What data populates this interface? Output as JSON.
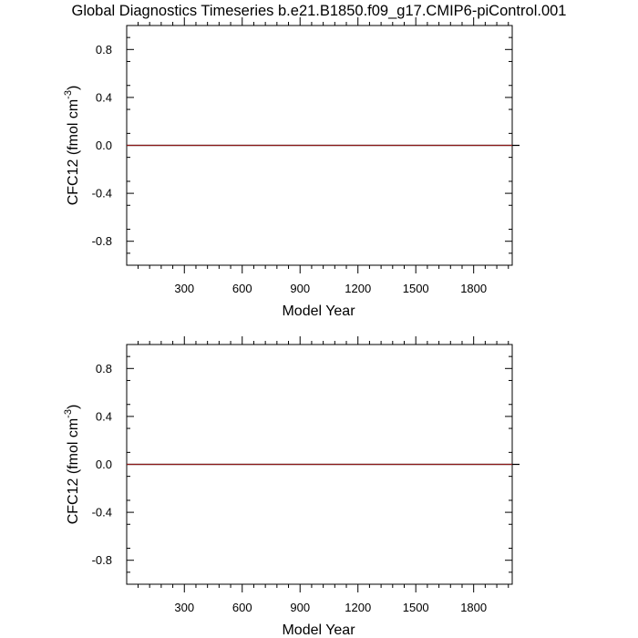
{
  "figure_title": "Global Diagnostics Timeseries b.e21.B1850.f09_g17.CMIP6-piControl.001",
  "colors": {
    "series": "#8b1a1a",
    "axes": "#000000"
  },
  "chart_data": [
    {
      "type": "line",
      "xlabel": "Model Year",
      "ylabel_main": "CFC12 (fmol cm",
      "ylabel_sup": "-3",
      "ylabel_close": ")",
      "xlim": [
        1,
        2000
      ],
      "ylim": [
        -1,
        1
      ],
      "x_ticks": [
        300,
        600,
        900,
        1200,
        1500,
        1800
      ],
      "x_tick_labels": [
        "300",
        "600",
        "900",
        "1200",
        "1500",
        "1800"
      ],
      "y_ticks": [
        0.8,
        0.4,
        0.0,
        -0.4,
        -0.8
      ],
      "y_tick_labels": [
        "0.8",
        "0.4",
        "0.0",
        "-0.4",
        "-0.8"
      ],
      "grid": false,
      "series": [
        {
          "x": [
            1,
            400,
            800,
            1200,
            1400,
            1600,
            1850,
            2000
          ],
          "y": [
            0.0,
            0.0,
            0.0,
            0.0,
            0.0,
            0.0,
            0.0,
            0.0
          ]
        }
      ]
    },
    {
      "type": "line",
      "xlabel": "Model Year",
      "ylabel_main": "CFC12 (fmol cm",
      "ylabel_sup": "-3",
      "ylabel_close": ")",
      "xlim": [
        1,
        2000
      ],
      "ylim": [
        -1,
        1
      ],
      "x_ticks": [
        300,
        600,
        900,
        1200,
        1500,
        1800
      ],
      "x_tick_labels": [
        "300",
        "600",
        "900",
        "1200",
        "1500",
        "1800"
      ],
      "y_ticks": [
        0.8,
        0.4,
        0.0,
        -0.4,
        -0.8
      ],
      "y_tick_labels": [
        "0.8",
        "0.4",
        "0.0",
        "-0.4",
        "-0.8"
      ],
      "grid": false,
      "series": [
        {
          "x": [
            1,
            400,
            800,
            1200,
            1400,
            1600,
            1850,
            2000
          ],
          "y": [
            0.0,
            0.0,
            0.0,
            0.0,
            0.0,
            0.0,
            0.0,
            0.0
          ]
        }
      ]
    }
  ]
}
